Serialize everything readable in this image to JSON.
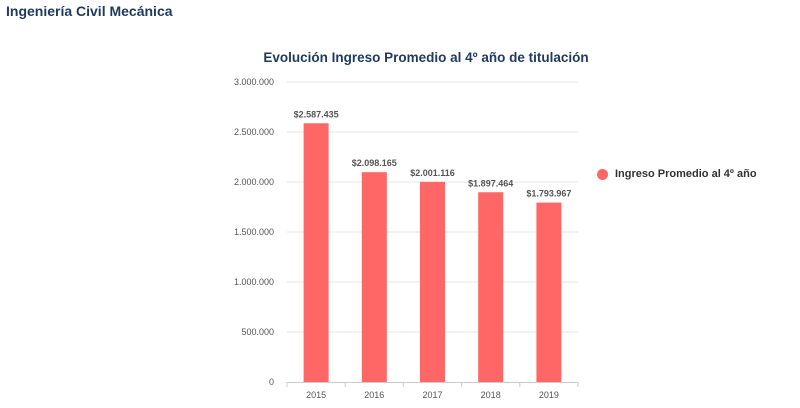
{
  "header": {
    "title": "Ingeniería Civil Mecánica"
  },
  "colors": {
    "bar": "#ff6666",
    "title": "#1f3a5c",
    "grid": "#e6e6e6",
    "axis": "#cccccc"
  },
  "chart_data": {
    "type": "bar",
    "title": "Evolución Ingreso Promedio al 4º año de titulación",
    "xlabel": "",
    "ylabel": "",
    "categories": [
      "2015",
      "2016",
      "2017",
      "2018",
      "2019"
    ],
    "series": [
      {
        "name": "Ingreso Promedio al 4º año",
        "values": [
          2587435,
          2098165,
          2001116,
          1897464,
          1793967
        ],
        "labels": [
          "$2.587.435",
          "$2.098.165",
          "$2.001.116",
          "$1.897.464",
          "$1.793.967"
        ]
      }
    ],
    "ylim": [
      0,
      3000000
    ],
    "yticks": [
      0,
      500000,
      1000000,
      1500000,
      2000000,
      2500000,
      3000000
    ],
    "ytick_labels": [
      "0",
      "500.000",
      "1.000.000",
      "1.500.000",
      "2.000.000",
      "2.500.000",
      "3.000.000"
    ],
    "grid": true,
    "legend": "right"
  }
}
